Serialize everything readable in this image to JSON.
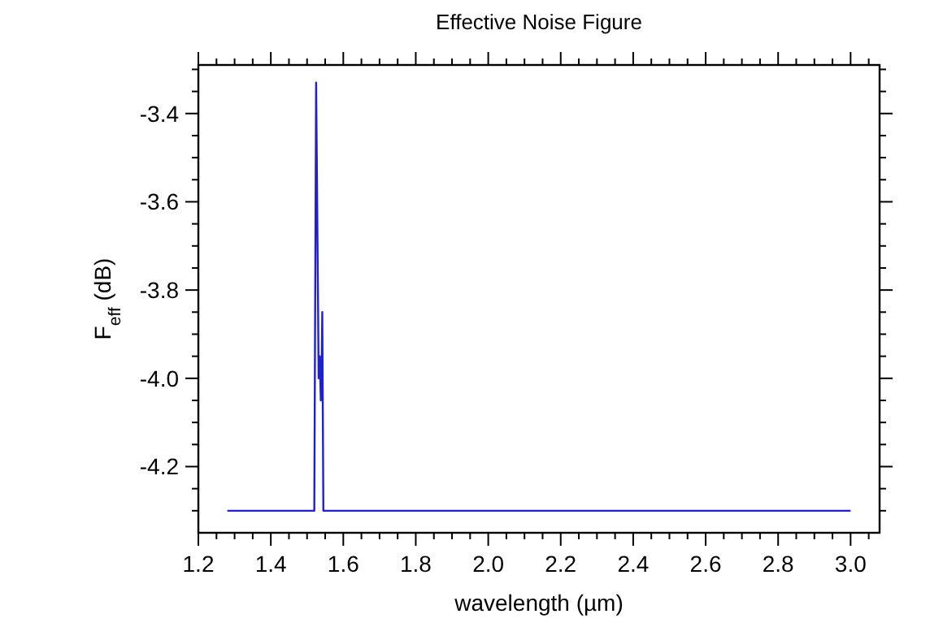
{
  "chart_data": {
    "type": "line",
    "title": "Effective Noise Figure",
    "xlabel": "wavelength (µm)",
    "ylabel": "F$_{eff}$ (dB)",
    "x": [
      1.28,
      1.52,
      1.525,
      1.53,
      1.532,
      1.535,
      1.538,
      1.54,
      1.542,
      1.545,
      3.0
    ],
    "series": [
      {
        "color": "#2020d0",
        "values": [
          -4.3,
          -4.3,
          -3.33,
          -3.8,
          -4.0,
          -3.95,
          -4.05,
          -4.0,
          -3.85,
          -4.3,
          -4.3
        ]
      }
    ],
    "xlim": [
      1.2,
      3.08
    ],
    "ylim": [
      -4.35,
      -3.29
    ],
    "xticks": [
      1.2,
      {
        "value": 1.25,
        "label": null
      },
      1.4,
      {
        "value": 1.3,
        "label": null
      },
      {
        "value": 1.35,
        "label": null
      },
      {
        "value": 1.45,
        "label": null
      },
      1.6,
      {
        "value": 1.5,
        "label": null
      },
      {
        "value": 1.55,
        "label": null
      },
      {
        "value": 1.65,
        "label": null
      },
      1.8,
      {
        "value": 1.7,
        "label": null
      },
      {
        "value": 1.75,
        "label": null
      },
      {
        "value": 1.85,
        "label": null
      },
      {
        "value": 2.0,
        "label": "2.0"
      },
      {
        "value": 1.9,
        "label": null
      },
      {
        "value": 1.95,
        "label": null
      },
      {
        "value": 2.05,
        "label": null
      },
      2.2,
      {
        "value": 2.1,
        "label": null
      },
      {
        "value": 2.15,
        "label": null
      },
      {
        "value": 2.25,
        "label": null
      },
      2.4,
      {
        "value": 2.3,
        "label": null
      },
      {
        "value": 2.35,
        "label": null
      },
      {
        "value": 2.45,
        "label": null
      },
      2.6,
      {
        "value": 2.5,
        "label": null
      },
      {
        "value": 2.55,
        "label": null
      },
      {
        "value": 2.65,
        "label": null
      },
      2.8,
      {
        "value": 2.7,
        "label": null
      },
      {
        "value": 2.75,
        "label": null
      },
      {
        "value": 2.85,
        "label": null
      },
      {
        "value": 3.0,
        "label": "3.0"
      },
      {
        "value": 2.9,
        "label": null
      },
      {
        "value": 2.95,
        "label": null
      },
      {
        "value": 3.05,
        "label": null
      }
    ],
    "yticks": [
      -3.4,
      -3.6,
      -3.8,
      {
        "value": -4.0,
        "label": "-4.0"
      },
      -4.2,
      {
        "value": -3.3,
        "label": null
      },
      {
        "value": -3.35,
        "label": null
      },
      {
        "value": -3.45,
        "label": null
      },
      {
        "value": -3.5,
        "label": null
      },
      {
        "value": -3.55,
        "label": null
      },
      {
        "value": -3.65,
        "label": null
      },
      {
        "value": -3.7,
        "label": null
      },
      {
        "value": -3.75,
        "label": null
      },
      {
        "value": -3.85,
        "label": null
      },
      {
        "value": -3.9,
        "label": null
      },
      {
        "value": -3.95,
        "label": null
      },
      {
        "value": -4.05,
        "label": null
      },
      {
        "value": -4.1,
        "label": null
      },
      {
        "value": -4.15,
        "label": null
      },
      {
        "value": -4.25,
        "label": null
      },
      {
        "value": -4.3,
        "label": null
      }
    ],
    "grid": false,
    "marker": "none",
    "line_style": "solid"
  }
}
